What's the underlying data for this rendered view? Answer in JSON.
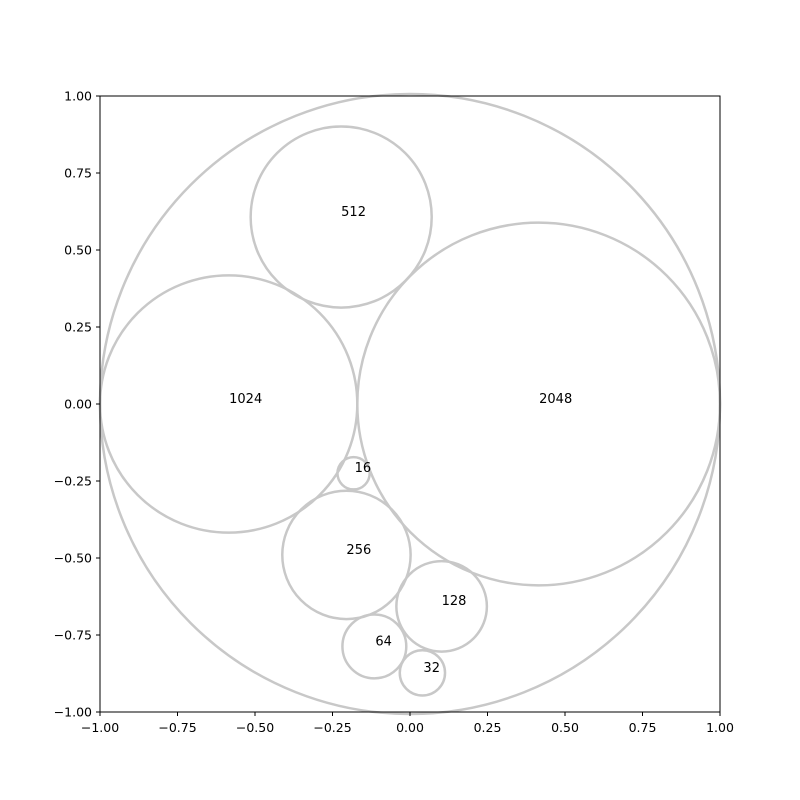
{
  "chart_data": {
    "type": "circle-packing",
    "title": "",
    "xlabel": "",
    "ylabel": "",
    "xlim": [
      -1.0,
      1.0
    ],
    "ylim": [
      -1.0,
      1.0
    ],
    "grid": false,
    "outer_circle": {
      "x": 0.0,
      "y": 0.0,
      "r": 1.0
    },
    "circles": [
      {
        "label": "2048",
        "x": 0.415,
        "y": 0.0,
        "r": 0.585
      },
      {
        "label": "1024",
        "x": -0.585,
        "y": 0.0,
        "r": 0.415
      },
      {
        "label": "512",
        "x": -0.222,
        "y": 0.607,
        "r": 0.292
      },
      {
        "label": "256",
        "x": -0.205,
        "y": -0.49,
        "r": 0.207
      },
      {
        "label": "128",
        "x": 0.102,
        "y": -0.657,
        "r": 0.146
      },
      {
        "label": "64",
        "x": -0.115,
        "y": -0.787,
        "r": 0.103
      },
      {
        "label": "32",
        "x": 0.04,
        "y": -0.873,
        "r": 0.073
      },
      {
        "label": "16",
        "x": -0.182,
        "y": -0.225,
        "r": 0.052
      }
    ],
    "label_offsets": [
      {
        "label": "2048",
        "dx": 0.055,
        "dy": 0.015
      },
      {
        "label": "1024",
        "dx": 0.055,
        "dy": 0.015
      },
      {
        "label": "512",
        "dx": 0.04,
        "dy": 0.015
      },
      {
        "label": "256",
        "dx": 0.04,
        "dy": 0.015
      },
      {
        "label": "128",
        "dx": 0.04,
        "dy": 0.015
      },
      {
        "label": "64",
        "dx": 0.03,
        "dy": 0.015
      },
      {
        "label": "32",
        "dx": 0.03,
        "dy": 0.015
      },
      {
        "label": "16",
        "dx": 0.03,
        "dy": 0.015
      }
    ],
    "xticks": [
      -1.0,
      -0.75,
      -0.5,
      -0.25,
      0.0,
      0.25,
      0.5,
      0.75,
      1.0
    ],
    "xtick_labels": [
      "−1.00",
      "−0.75",
      "−0.50",
      "−0.25",
      "0.00",
      "0.25",
      "0.50",
      "0.75",
      "1.00"
    ],
    "yticks": [
      1.0,
      0.75,
      0.5,
      0.25,
      0.0,
      -0.25,
      -0.5,
      -0.75,
      -1.0
    ],
    "ytick_labels": [
      "1.00",
      "0.75",
      "0.50",
      "0.25",
      "0.00",
      "−0.25",
      "−0.50",
      "−0.75",
      "−1.00"
    ],
    "colors": {
      "circle_stroke": "#c8c8c8",
      "axis": "#000000"
    }
  }
}
